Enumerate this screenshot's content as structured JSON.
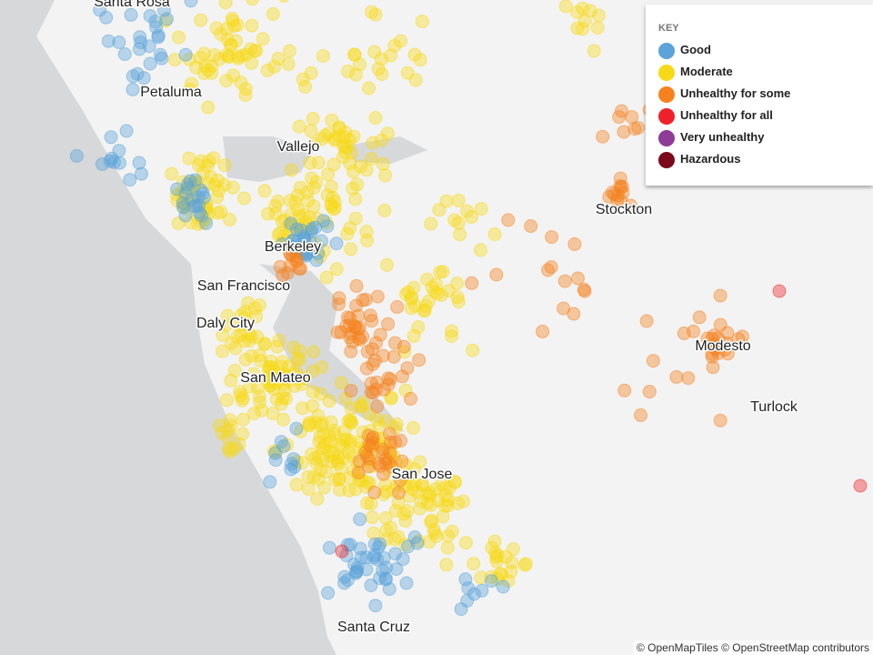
{
  "cities": [
    {
      "label": "Santa Rosa"
    },
    {
      "label": "Petaluma"
    },
    {
      "label": "Vallejo"
    },
    {
      "label": "Berkeley"
    },
    {
      "label": "San Francisco"
    },
    {
      "label": "Daly City"
    },
    {
      "label": "San Mateo"
    },
    {
      "label": "San Jose"
    },
    {
      "label": "Santa Cruz"
    },
    {
      "label": "Stockton"
    },
    {
      "label": "Modesto"
    },
    {
      "label": "Turlock"
    }
  ],
  "key": {
    "title": "KEY",
    "items": [
      {
        "label": "Good",
        "color": "#5ba3d9"
      },
      {
        "label": "Moderate",
        "color": "#f7d917"
      },
      {
        "label": "Unhealthy for some",
        "color": "#f5821f"
      },
      {
        "label": "Unhealthy for all",
        "color": "#f0202a"
      },
      {
        "label": "Very unhealthy",
        "color": "#8e3c97"
      },
      {
        "label": "Hazardous",
        "color": "#7a0a1a"
      }
    ]
  },
  "attribution": "© OpenMapTiles © OpenStreetMap contributors"
}
